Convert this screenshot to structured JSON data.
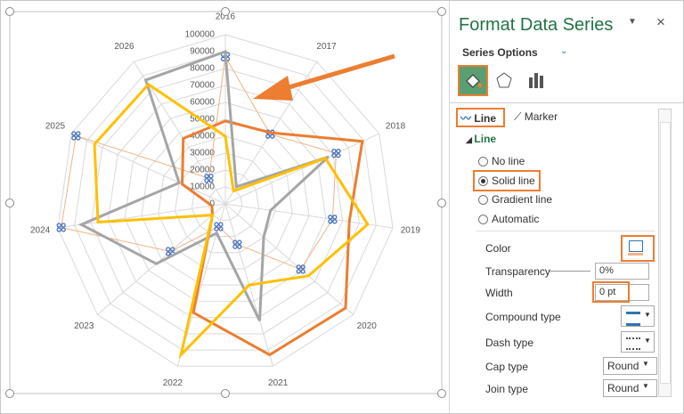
{
  "chart_data": {
    "type": "radar",
    "categories": [
      "2016",
      "2017",
      "2018",
      "2019",
      "2020",
      "2021",
      "2022",
      "2023",
      "2024",
      "2025",
      "2026"
    ],
    "series": [
      {
        "color": "#f4b183",
        "values": [
          87000,
          49000,
          72000,
          64000,
          59000,
          25000,
          14000,
          43000,
          98000,
          97000,
          18000
        ],
        "markers": true
      },
      {
        "color": "#ed7d31",
        "values": [
          49000,
          50000,
          89000,
          74000,
          94000,
          93000,
          67000,
          10000,
          8000,
          28000,
          46000
        ]
      },
      {
        "color": "#a5a5a5",
        "values": [
          90000,
          12000,
          67000,
          27000,
          30000,
          72000,
          18000,
          54000,
          86000,
          30000,
          87000
        ]
      },
      {
        "color": "#ffc000",
        "values": [
          40000,
          9000,
          65000,
          85000,
          65000,
          50000,
          93000,
          10000,
          76000,
          85000,
          84000
        ]
      }
    ],
    "ylim": [
      0,
      100000
    ],
    "yticks": [
      0,
      10000,
      20000,
      30000,
      40000,
      50000,
      60000,
      70000,
      80000,
      90000,
      100000
    ],
    "grid": true
  },
  "pane": {
    "title": "Format Data Series",
    "series_options": "Series Options",
    "tabs": [
      "Line",
      "Marker"
    ],
    "section": "Line",
    "line_options": [
      "No line",
      "Solid line",
      "Gradient line",
      "Automatic"
    ],
    "properties": [
      {
        "label": "Color"
      },
      {
        "label": "Transparency",
        "value": "0%"
      },
      {
        "label": "Width",
        "value": "0 pt"
      },
      {
        "label": "Compound type"
      },
      {
        "label": "Dash type"
      },
      {
        "label": "Cap type",
        "value": "Round"
      },
      {
        "label": "Join type",
        "value": "Round"
      }
    ]
  }
}
